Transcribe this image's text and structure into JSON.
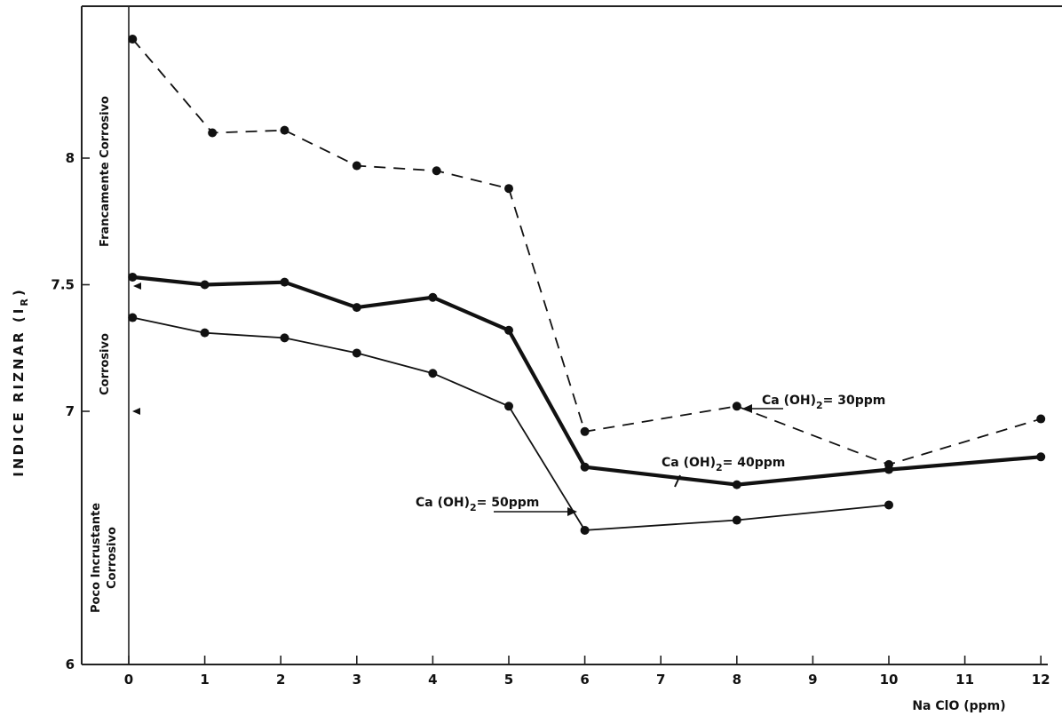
{
  "chart_data": {
    "type": "line",
    "title": "",
    "xlabel": "Na ClO  (ppm)",
    "ylabel": "INDICE   RIZNAR  (I",
    "ylabel_sub": "R",
    "ylabel_close": ")",
    "xlim": [
      -0.55,
      12.1
    ],
    "ylim": [
      6,
      8.6
    ],
    "x_ticks": [
      {
        "value": 0,
        "label": "0"
      },
      {
        "value": 1,
        "label": "1"
      },
      {
        "value": 2,
        "label": "2"
      },
      {
        "value": 3,
        "label": "3"
      },
      {
        "value": 4,
        "label": "4"
      },
      {
        "value": 5,
        "label": "5"
      },
      {
        "value": 6,
        "label": "6"
      },
      {
        "value": 7,
        "label": "7"
      },
      {
        "value": 8,
        "label": "8"
      },
      {
        "value": 9,
        "label": "9"
      },
      {
        "value": 10,
        "label": "10"
      },
      {
        "value": 11,
        "label": "11"
      },
      {
        "value": 12,
        "label": "12"
      }
    ],
    "y_ticks": [
      {
        "value": 6,
        "label": "6"
      },
      {
        "value": 7,
        "label": "7"
      },
      {
        "value": 7.5,
        "label": "7.5"
      },
      {
        "value": 8,
        "label": "8"
      }
    ],
    "grid": false,
    "series": [
      {
        "name": "Ca(OH)2= 30ppm",
        "style": "dashed",
        "x": [
          0.05,
          1.1,
          2.05,
          3.0,
          4.05,
          5.0,
          6.0,
          8.0,
          10.0,
          12.0
        ],
        "y": [
          8.47,
          8.1,
          8.11,
          7.97,
          7.95,
          7.88,
          6.92,
          7.02,
          6.79,
          6.97
        ]
      },
      {
        "name": "Ca(OH)2= 40ppm",
        "style": "thick",
        "x": [
          0.05,
          1.0,
          2.05,
          3.0,
          4.0,
          5.0,
          6.0,
          8.0,
          10.0,
          12.0
        ],
        "y": [
          7.53,
          7.5,
          7.51,
          7.41,
          7.45,
          7.32,
          6.78,
          6.71,
          6.77,
          6.82
        ]
      },
      {
        "name": "Ca(OH)2= 50ppm",
        "style": "thin",
        "x": [
          0.05,
          1.0,
          2.05,
          3.0,
          4.0,
          5.0,
          6.0,
          8.0,
          10.0
        ],
        "y": [
          7.37,
          7.31,
          7.29,
          7.23,
          7.15,
          7.02,
          6.53,
          6.57,
          6.63
        ]
      }
    ],
    "annotations": {
      "s30": {
        "main": "Ca (OH)",
        "sub": "2",
        "rest": "= 30ppm"
      },
      "s40": {
        "main": "Ca (OH)",
        "sub": "2",
        "rest": "= 40ppm"
      },
      "s50": {
        "main": "Ca (OH)",
        "sub": "2",
        "rest": "= 50ppm"
      }
    },
    "zones": {
      "francamente": "Francamente  Corrosivo",
      "corrosivo": "Corrosivo",
      "poco_1": "Poco  Incrustante",
      "poco_2": "Corrosivo"
    }
  }
}
